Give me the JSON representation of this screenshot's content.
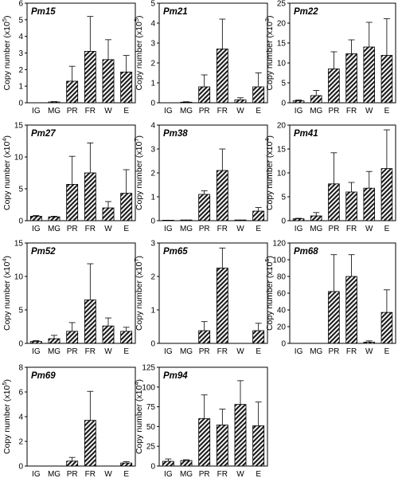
{
  "chart_data": [
    {
      "type": "bar",
      "title": "Pm15",
      "ylabel": "Copy number (x10",
      "exponent": "5",
      "ylim": [
        0,
        6
      ],
      "yticks": [
        "0",
        "1",
        "2",
        "3",
        "4",
        "5",
        "6"
      ],
      "categories": [
        "IG",
        "MG",
        "PR",
        "FR",
        "W",
        "E"
      ],
      "values": [
        0.0,
        0.05,
        1.3,
        3.1,
        2.6,
        1.85
      ],
      "errors": [
        0.0,
        0.02,
        0.9,
        2.1,
        1.2,
        1.0
      ]
    },
    {
      "type": "bar",
      "title": "Pm21",
      "ylabel": "Copy number (x10",
      "exponent": "5",
      "ylim": [
        0,
        5
      ],
      "yticks": [
        "0",
        "1",
        "2",
        "3",
        "4",
        "5"
      ],
      "categories": [
        "IG",
        "MG",
        "PR",
        "FR",
        "W",
        "E"
      ],
      "values": [
        0.0,
        0.03,
        0.8,
        2.7,
        0.15,
        0.8
      ],
      "errors": [
        0.0,
        0.02,
        0.6,
        1.5,
        0.1,
        0.7
      ]
    },
    {
      "type": "bar",
      "title": "Pm22",
      "ylabel": "Copy number (x10",
      "exponent": "3",
      "ylim": [
        0,
        25
      ],
      "yticks": [
        "0",
        "5",
        "10",
        "15",
        "20",
        "25"
      ],
      "categories": [
        "IG",
        "MG",
        "PR",
        "FR",
        "W",
        "E"
      ],
      "values": [
        0.5,
        1.8,
        8.5,
        12.3,
        14.0,
        11.9
      ],
      "errors": [
        0.2,
        1.3,
        4.3,
        3.5,
        6.2,
        9.2
      ]
    },
    {
      "type": "bar",
      "title": "Pm27",
      "ylabel": "Copy number (x10",
      "exponent": "4",
      "ylim": [
        0,
        15
      ],
      "yticks": [
        "0",
        "5",
        "10",
        "15"
      ],
      "categories": [
        "IG",
        "MG",
        "PR",
        "FR",
        "W",
        "E"
      ],
      "values": [
        0.7,
        0.6,
        5.7,
        7.5,
        2.0,
        4.3
      ],
      "errors": [
        0.1,
        0.1,
        4.4,
        4.7,
        1.0,
        3.7
      ]
    },
    {
      "type": "bar",
      "title": "Pm38",
      "ylabel": "Copy number (x10",
      "exponent": "7",
      "ylim": [
        0,
        4
      ],
      "yticks": [
        "0",
        "1",
        "2",
        "3",
        "4"
      ],
      "categories": [
        "IG",
        "MG",
        "PR",
        "FR",
        "W",
        "E"
      ],
      "values": [
        0.02,
        0.03,
        1.1,
        2.1,
        0.03,
        0.4
      ],
      "errors": [
        0.0,
        0.0,
        0.15,
        0.9,
        0.0,
        0.15
      ]
    },
    {
      "type": "bar",
      "title": "Pm41",
      "ylabel": "Copy number (x10",
      "exponent": "4",
      "ylim": [
        0,
        20
      ],
      "yticks": [
        "0",
        "5",
        "10",
        "15",
        "20"
      ],
      "categories": [
        "IG",
        "MG",
        "PR",
        "FR",
        "W",
        "E"
      ],
      "values": [
        0.4,
        1.0,
        7.7,
        6.0,
        6.8,
        10.9
      ],
      "errors": [
        0.1,
        0.7,
        6.5,
        2.0,
        3.5,
        8.1
      ]
    },
    {
      "type": "bar",
      "title": "Pm52",
      "ylabel": "Copy number (x10",
      "exponent": "4",
      "ylim": [
        0,
        15
      ],
      "yticks": [
        "0",
        "5",
        "10",
        "15"
      ],
      "categories": [
        "IG",
        "MG",
        "PR",
        "FR",
        "W",
        "E"
      ],
      "values": [
        0.3,
        0.7,
        1.8,
        6.5,
        2.6,
        1.8
      ],
      "errors": [
        0.1,
        0.5,
        1.3,
        5.4,
        1.2,
        0.6
      ]
    },
    {
      "type": "bar",
      "title": "Pm65",
      "ylabel": "Copy number (x10",
      "exponent": "7",
      "ylim": [
        0,
        3
      ],
      "yticks": [
        "0",
        "1",
        "2",
        "3"
      ],
      "categories": [
        "IG",
        "MG",
        "PR",
        "FR",
        "W",
        "E"
      ],
      "values": [
        0.0,
        0.0,
        0.38,
        2.25,
        0.0,
        0.38
      ],
      "errors": [
        0.0,
        0.0,
        0.27,
        0.6,
        0.0,
        0.22
      ]
    },
    {
      "type": "bar",
      "title": "Pm68",
      "ylabel": "Copy number (x10",
      "exponent": "5",
      "ylim": [
        0,
        120
      ],
      "yticks": [
        "0",
        "20",
        "40",
        "60",
        "80",
        "100",
        "120"
      ],
      "categories": [
        "IG",
        "MG",
        "PR",
        "FR",
        "W",
        "E"
      ],
      "values": [
        0.0,
        0.0,
        62,
        80,
        1.5,
        37
      ],
      "errors": [
        0.0,
        0.0,
        44,
        26,
        1.5,
        27
      ]
    },
    {
      "type": "bar",
      "title": "Pm69",
      "ylabel": "Copy number (x10",
      "exponent": "5",
      "ylim": [
        0,
        8
      ],
      "yticks": [
        "0",
        "2",
        "4",
        "6",
        "8"
      ],
      "categories": [
        "IG",
        "MG",
        "PR",
        "FR",
        "W",
        "E"
      ],
      "values": [
        0.0,
        0.0,
        0.4,
        3.7,
        0.0,
        0.25
      ],
      "errors": [
        0.0,
        0.0,
        0.3,
        2.35,
        0.0,
        0.1
      ]
    },
    {
      "type": "bar",
      "title": "Pm94",
      "ylabel": "Copy number (x10",
      "exponent": "4",
      "ylim": [
        0,
        125
      ],
      "yticks": [
        "0",
        "25",
        "50",
        "75",
        "100",
        "125"
      ],
      "categories": [
        "IG",
        "MG",
        "PR",
        "FR",
        "W",
        "E"
      ],
      "values": [
        6,
        7,
        60,
        52,
        78,
        51
      ],
      "errors": [
        3,
        1,
        30,
        20,
        30,
        30
      ]
    }
  ]
}
